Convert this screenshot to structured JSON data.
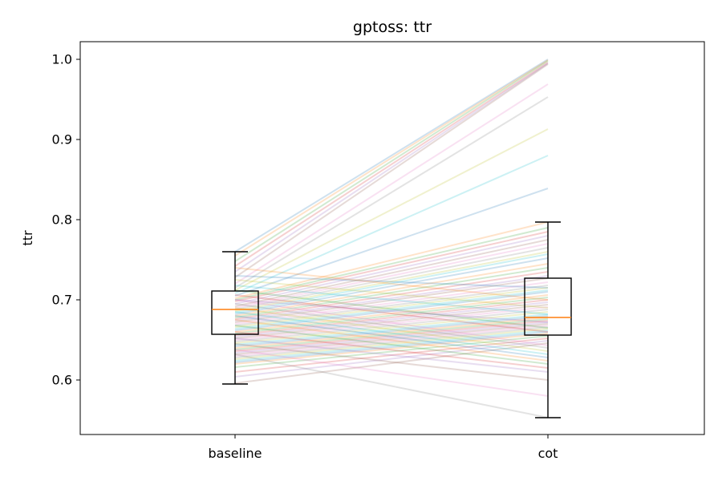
{
  "chart_data": {
    "type": "line",
    "title": "gptoss: ttr",
    "xlabel": "",
    "ylabel": "ttr",
    "categories": [
      "baseline",
      "cot"
    ],
    "ylim": [
      0.532,
      1.022
    ],
    "yticks": [
      "0.6",
      "0.7",
      "0.8",
      "0.9",
      "1.0"
    ],
    "grid": false,
    "legend": "none",
    "series_colors": [
      "#1f77b4",
      "#ff7f0e",
      "#2ca02c",
      "#d62728",
      "#9467bd",
      "#8c564b",
      "#e377c2",
      "#7f7f7f",
      "#bcbd22",
      "#17becf"
    ],
    "median_color": "#ff7f0e",
    "pairs": [
      [
        0.76,
        1.0
      ],
      [
        0.755,
        0.999
      ],
      [
        0.748,
        0.998
      ],
      [
        0.742,
        0.996
      ],
      [
        0.735,
        0.995
      ],
      [
        0.728,
        0.994
      ],
      [
        0.72,
        0.969
      ],
      [
        0.715,
        0.953
      ],
      [
        0.712,
        0.913
      ],
      [
        0.708,
        0.88
      ],
      [
        0.705,
        0.839
      ],
      [
        0.702,
        0.797
      ],
      [
        0.7,
        0.79
      ],
      [
        0.698,
        0.785
      ],
      [
        0.695,
        0.78
      ],
      [
        0.692,
        0.775
      ],
      [
        0.69,
        0.77
      ],
      [
        0.688,
        0.765
      ],
      [
        0.686,
        0.76
      ],
      [
        0.684,
        0.757
      ],
      [
        0.682,
        0.752
      ],
      [
        0.68,
        0.745
      ],
      [
        0.678,
        0.74
      ],
      [
        0.676,
        0.735
      ],
      [
        0.674,
        0.73
      ],
      [
        0.672,
        0.727
      ],
      [
        0.67,
        0.722
      ],
      [
        0.668,
        0.718
      ],
      [
        0.666,
        0.715
      ],
      [
        0.664,
        0.712
      ],
      [
        0.662,
        0.71
      ],
      [
        0.66,
        0.706
      ],
      [
        0.658,
        0.703
      ],
      [
        0.656,
        0.7
      ],
      [
        0.654,
        0.697
      ],
      [
        0.652,
        0.694
      ],
      [
        0.65,
        0.691
      ],
      [
        0.648,
        0.688
      ],
      [
        0.646,
        0.685
      ],
      [
        0.644,
        0.682
      ],
      [
        0.642,
        0.68
      ],
      [
        0.64,
        0.678
      ],
      [
        0.638,
        0.676
      ],
      [
        0.636,
        0.674
      ],
      [
        0.634,
        0.672
      ],
      [
        0.632,
        0.67
      ],
      [
        0.63,
        0.668
      ],
      [
        0.628,
        0.666
      ],
      [
        0.626,
        0.664
      ],
      [
        0.624,
        0.662
      ],
      [
        0.622,
        0.66
      ],
      [
        0.62,
        0.658
      ],
      [
        0.616,
        0.655
      ],
      [
        0.61,
        0.652
      ],
      [
        0.604,
        0.649
      ],
      [
        0.596,
        0.646
      ],
      [
        0.7,
        0.643
      ],
      [
        0.695,
        0.64
      ],
      [
        0.69,
        0.636
      ],
      [
        0.685,
        0.632
      ],
      [
        0.68,
        0.628
      ],
      [
        0.675,
        0.624
      ],
      [
        0.668,
        0.62
      ],
      [
        0.66,
        0.615
      ],
      [
        0.652,
        0.61
      ],
      [
        0.645,
        0.6
      ],
      [
        0.638,
        0.58
      ],
      [
        0.632,
        0.553
      ],
      [
        0.725,
        0.69
      ],
      [
        0.718,
        0.682
      ],
      [
        0.73,
        0.715
      ],
      [
        0.74,
        0.7
      ],
      [
        0.712,
        0.665
      ],
      [
        0.706,
        0.66
      ],
      [
        0.7,
        0.672
      ]
    ],
    "boxes": [
      {
        "category": "baseline",
        "whisker_low": 0.595,
        "q1": 0.657,
        "median": 0.688,
        "q3": 0.711,
        "whisker_high": 0.76
      },
      {
        "category": "cot",
        "whisker_low": 0.553,
        "q1": 0.656,
        "median": 0.678,
        "q3": 0.727,
        "whisker_high": 0.797
      }
    ]
  }
}
